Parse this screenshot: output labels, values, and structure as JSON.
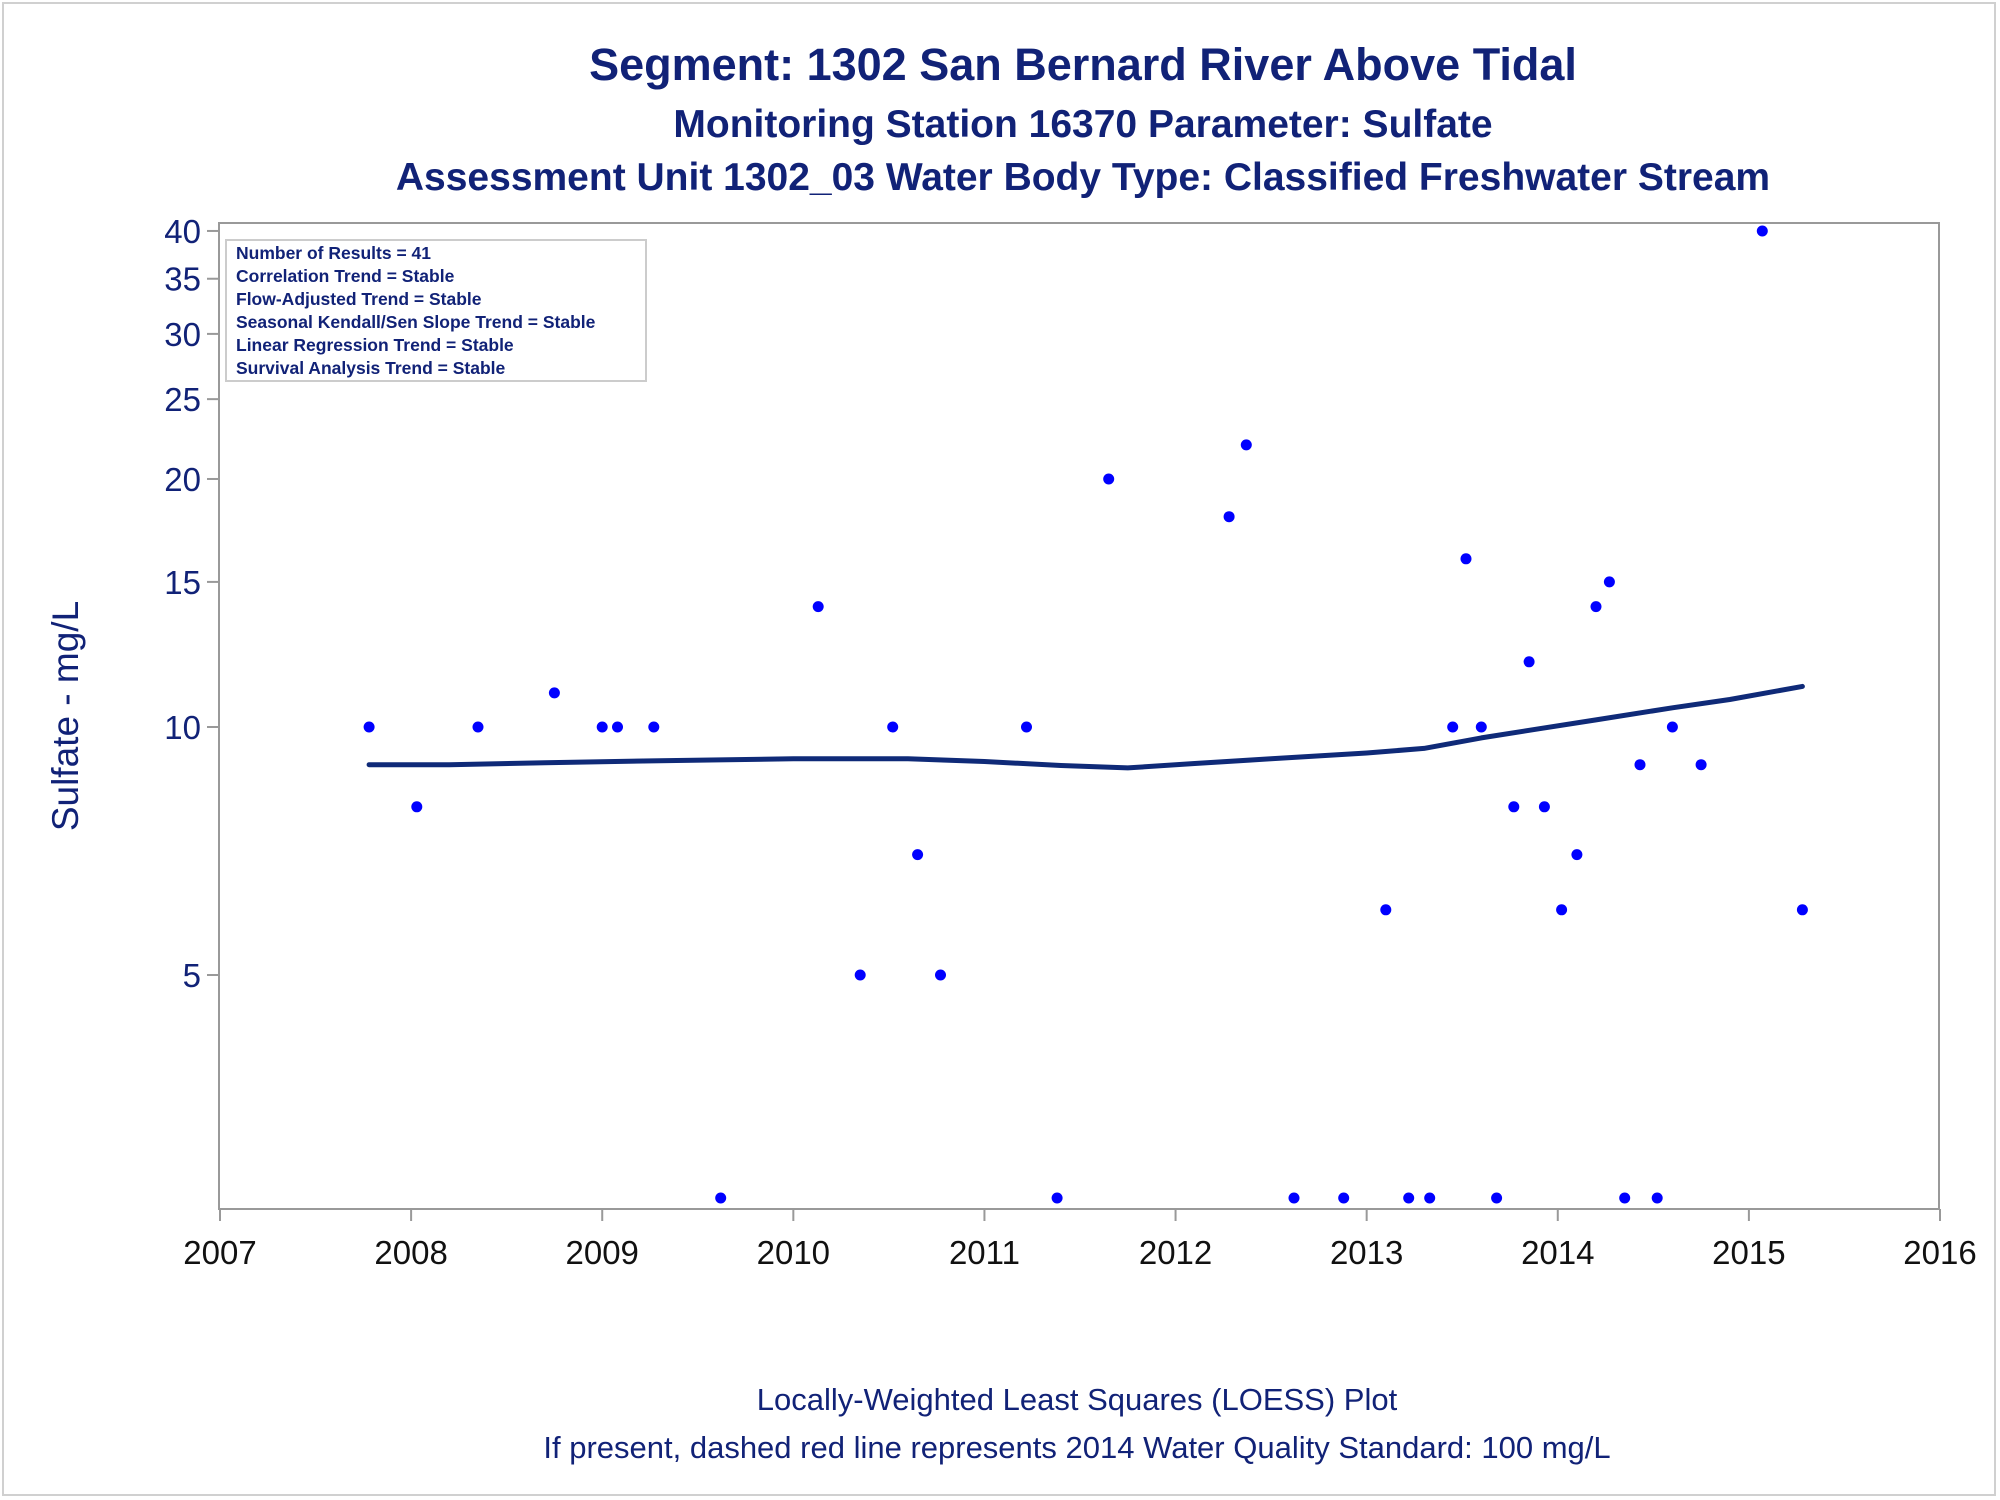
{
  "colors": {
    "text": "#112277",
    "points": "#0000ff",
    "loess_line": "#0f2a78",
    "axis": "#999999"
  },
  "titles": {
    "line1": "Segment: 1302  San Bernard River Above Tidal",
    "line2": "Monitoring Station 16370 Parameter: Sulfate",
    "line3": "Assessment Unit 1302_03   Water Body Type: Classified Freshwater Stream"
  },
  "inset": {
    "lines": [
      "Number of Results = 41",
      "Correlation Trend = Stable",
      "Flow-Adjusted Trend = Stable",
      "Seasonal Kendall/Sen Slope Trend = Stable",
      "Linear Regression Trend = Stable",
      "Survival Analysis Trend = Stable"
    ]
  },
  "footnotes": {
    "line1": "Locally-Weighted Least Squares (LOESS) Plot",
    "line2": "If present, dashed red line represents 2014 Water Quality Standard: 100   mg/L"
  },
  "chart_data": {
    "type": "scatter",
    "ylabel": "Sulfate - mg/L",
    "xlabel": "",
    "y_scale": "log",
    "xlim": [
      2007,
      2016
    ],
    "ylim": [
      2.6,
      40.9
    ],
    "x_ticks": [
      "2007",
      "2008",
      "2009",
      "2010",
      "2011",
      "2012",
      "2013",
      "2014",
      "2015",
      "2016"
    ],
    "y_ticks": [
      "5",
      "10",
      "15",
      "20",
      "25",
      "30",
      "35",
      "40"
    ],
    "grid": false,
    "points": [
      {
        "x": 2007.78,
        "y": 10
      },
      {
        "x": 2008.03,
        "y": 8
      },
      {
        "x": 2008.35,
        "y": 10
      },
      {
        "x": 2008.75,
        "y": 11
      },
      {
        "x": 2009.0,
        "y": 10
      },
      {
        "x": 2009.08,
        "y": 10
      },
      {
        "x": 2009.27,
        "y": 10
      },
      {
        "x": 2009.62,
        "y": 2.5
      },
      {
        "x": 2010.13,
        "y": 14
      },
      {
        "x": 2010.35,
        "y": 5
      },
      {
        "x": 2010.52,
        "y": 10
      },
      {
        "x": 2010.65,
        "y": 7
      },
      {
        "x": 2010.77,
        "y": 5
      },
      {
        "x": 2011.22,
        "y": 10
      },
      {
        "x": 2011.38,
        "y": 2.5
      },
      {
        "x": 2011.65,
        "y": 20
      },
      {
        "x": 2012.28,
        "y": 18
      },
      {
        "x": 2012.37,
        "y": 22
      },
      {
        "x": 2012.62,
        "y": 2.5
      },
      {
        "x": 2012.88,
        "y": 2.5
      },
      {
        "x": 2013.1,
        "y": 6
      },
      {
        "x": 2013.22,
        "y": 2.5
      },
      {
        "x": 2013.33,
        "y": 2.5
      },
      {
        "x": 2013.45,
        "y": 10
      },
      {
        "x": 2013.52,
        "y": 16
      },
      {
        "x": 2013.6,
        "y": 10
      },
      {
        "x": 2013.68,
        "y": 2.5
      },
      {
        "x": 2013.77,
        "y": 8
      },
      {
        "x": 2013.85,
        "y": 12
      },
      {
        "x": 2013.93,
        "y": 8
      },
      {
        "x": 2014.02,
        "y": 6
      },
      {
        "x": 2014.1,
        "y": 7
      },
      {
        "x": 2014.2,
        "y": 14
      },
      {
        "x": 2014.27,
        "y": 15
      },
      {
        "x": 2014.35,
        "y": 2.5
      },
      {
        "x": 2014.43,
        "y": 9
      },
      {
        "x": 2014.52,
        "y": 2.5
      },
      {
        "x": 2014.6,
        "y": 10
      },
      {
        "x": 2014.75,
        "y": 9
      },
      {
        "x": 2015.07,
        "y": 40
      },
      {
        "x": 2015.28,
        "y": 6
      }
    ],
    "loess": [
      {
        "x": 2007.78,
        "y": 9.0
      },
      {
        "x": 2008.2,
        "y": 9.0
      },
      {
        "x": 2008.7,
        "y": 9.05
      },
      {
        "x": 2009.3,
        "y": 9.1
      },
      {
        "x": 2010.0,
        "y": 9.15
      },
      {
        "x": 2010.6,
        "y": 9.15
      },
      {
        "x": 2011.0,
        "y": 9.08
      },
      {
        "x": 2011.4,
        "y": 8.98
      },
      {
        "x": 2011.75,
        "y": 8.92
      },
      {
        "x": 2012.1,
        "y": 9.03
      },
      {
        "x": 2012.5,
        "y": 9.15
      },
      {
        "x": 2013.0,
        "y": 9.3
      },
      {
        "x": 2013.3,
        "y": 9.42
      },
      {
        "x": 2013.6,
        "y": 9.7
      },
      {
        "x": 2013.9,
        "y": 9.95
      },
      {
        "x": 2014.2,
        "y": 10.2
      },
      {
        "x": 2014.6,
        "y": 10.55
      },
      {
        "x": 2014.9,
        "y": 10.8
      },
      {
        "x": 2015.28,
        "y": 11.2
      }
    ]
  }
}
